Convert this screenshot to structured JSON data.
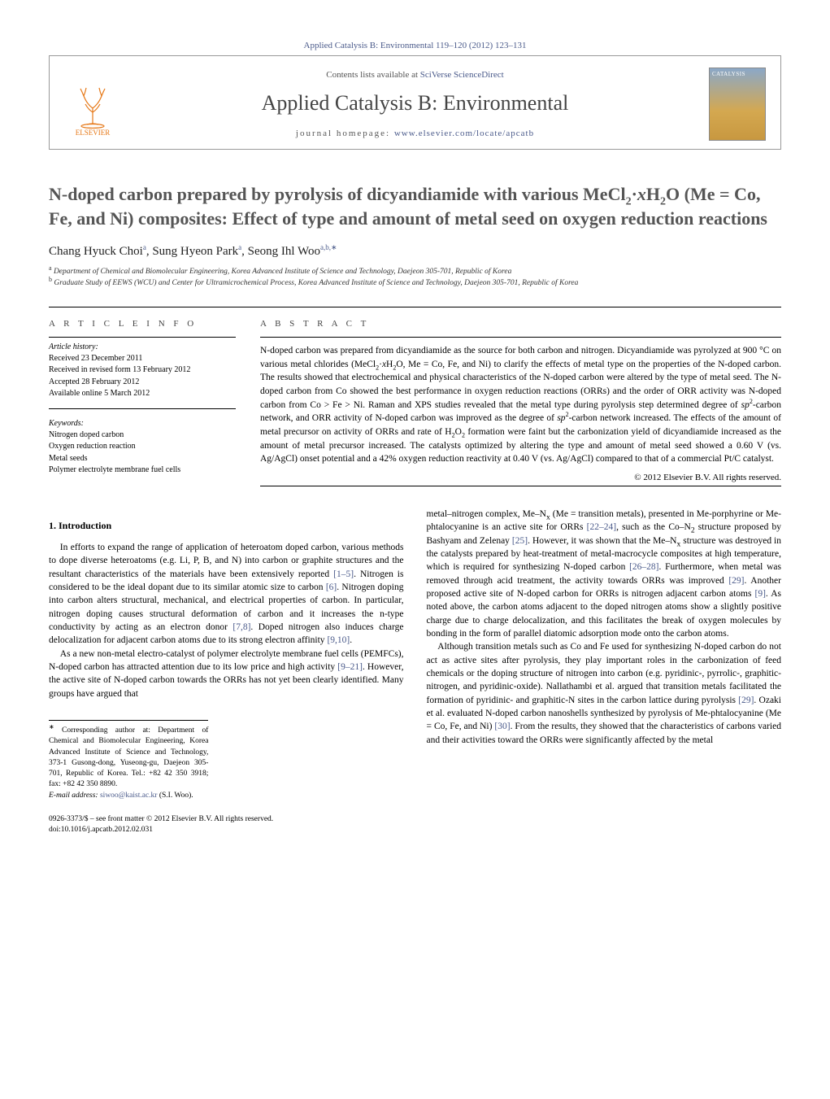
{
  "colors": {
    "link": "#4a5a8a",
    "logo": "#e67817",
    "title_gray": "#555555",
    "text": "#000000",
    "background": "#ffffff",
    "rule": "#000000"
  },
  "typography": {
    "base_font": "Georgia, 'Times New Roman', serif",
    "body_size_pt": 11.5,
    "title_size_pt": 22,
    "journal_title_size_pt": 26,
    "small_size_pt": 10
  },
  "journal_ref": "Applied Catalysis B: Environmental 119–120 (2012) 123–131",
  "header": {
    "publisher": "ELSEVIER",
    "contents_prefix": "Contents lists available at ",
    "contents_link": "SciVerse ScienceDirect",
    "journal_title": "Applied Catalysis B: Environmental",
    "homepage_prefix": "journal homepage: ",
    "homepage_url": "www.elsevier.com/locate/apcatb",
    "cover_label": "CATALYSIS"
  },
  "article": {
    "title_html": "N-doped carbon prepared by pyrolysis of dicyandiamide with various MeCl<sub>2</sub>·<i>x</i>H<sub>2</sub>O (Me = Co, Fe, and Ni) composites: Effect of type and amount of metal seed on oxygen reduction reactions",
    "authors_html": "Chang Hyuck Choi<sup>a</sup>, Sung Hyeon Park<sup>a</sup>, Seong Ihl Woo<sup>a,b,∗</sup>",
    "affiliations": [
      {
        "marker": "a",
        "text": "Department of Chemical and Biomolecular Engineering, Korea Advanced Institute of Science and Technology, Daejeon 305-701, Republic of Korea"
      },
      {
        "marker": "b",
        "text": "Graduate Study of EEWS (WCU) and Center for Ultramicrochemical Process, Korea Advanced Institute of Science and Technology, Daejeon 305-701, Republic of Korea"
      }
    ]
  },
  "info": {
    "section_label": "A R T I C L E   I N F O",
    "history_label": "Article history:",
    "history": [
      "Received 23 December 2011",
      "Received in revised form 13 February 2012",
      "Accepted 28 February 2012",
      "Available online 5 March 2012"
    ],
    "keywords_label": "Keywords:",
    "keywords": [
      "Nitrogen doped carbon",
      "Oxygen reduction reaction",
      "Metal seeds",
      "Polymer electrolyte membrane fuel cells"
    ]
  },
  "abstract": {
    "label": "A B S T R A C T",
    "text_html": "N-doped carbon was prepared from dicyandiamide as the source for both carbon and nitrogen. Dicyandiamide was pyrolyzed at 900 °C on various metal chlorides (MeCl<sub>2</sub>·<i>x</i>H<sub>2</sub>O, Me = Co, Fe, and Ni) to clarify the effects of metal type on the properties of the N-doped carbon. The results showed that electrochemical and physical characteristics of the N-doped carbon were altered by the type of metal seed. The N-doped carbon from Co showed the best performance in oxygen reduction reactions (ORRs) and the order of ORR activity was N-doped carbon from Co > Fe > Ni. Raman and XPS studies revealed that the metal type during pyrolysis step determined degree of <i>sp</i><sup>2</sup>-carbon network, and ORR activity of N-doped carbon was improved as the degree of <i>sp</i><sup>2</sup>-carbon network increased. The effects of the amount of metal precursor on activity of ORRs and rate of H<sub>2</sub>O<sub>2</sub> formation were faint but the carbonization yield of dicyandiamide increased as the amount of metal precursor increased. The catalysts optimized by altering the type and amount of metal seed showed a 0.60 V (vs. Ag/AgCl) onset potential and a 42% oxygen reduction reactivity at 0.40 V (vs. Ag/AgCl) compared to that of a commercial Pt/C catalyst.",
    "copyright": "© 2012 Elsevier B.V. All rights reserved."
  },
  "body": {
    "heading1": "1. Introduction",
    "col1_p1_html": "In efforts to expand the range of application of heteroatom doped carbon, various methods to dope diverse heteroatoms (e.g. Li, P, B, and N) into carbon or graphite structures and the resultant characteristics of the materials have been extensively reported <span class=\"ref-link\">[1–5]</span>. Nitrogen is considered to be the ideal dopant due to its similar atomic size to carbon <span class=\"ref-link\">[6]</span>. Nitrogen doping into carbon alters structural, mechanical, and electrical properties of carbon. In particular, nitrogen doping causes structural deformation of carbon and it increases the n-type conductivity by acting as an electron donor <span class=\"ref-link\">[7,8]</span>. Doped nitrogen also induces charge delocalization for adjacent carbon atoms due to its strong electron affinity <span class=\"ref-link\">[9,10]</span>.",
    "col1_p2_html": "As a new non-metal electro-catalyst of polymer electrolyte membrane fuel cells (PEMFCs), N-doped carbon has attracted attention due to its low price and high activity <span class=\"ref-link\">[9–21]</span>. However, the active site of N-doped carbon towards the ORRs has not yet been clearly identified. Many groups have argued that",
    "col2_p1_html": "metal–nitrogen complex, Me–N<sub>x</sub> (Me = transition metals), presented in Me-porphyrine or Me-phtalocyanine is an active site for ORRs <span class=\"ref-link\">[22–24]</span>, such as the Co–N<sub>2</sub> structure proposed by Bashyam and Zelenay <span class=\"ref-link\">[25]</span>. However, it was shown that the Me–N<sub>x</sub> structure was destroyed in the catalysts prepared by heat-treatment of metal-macrocycle composites at high temperature, which is required for synthesizing N-doped carbon <span class=\"ref-link\">[26–28]</span>. Furthermore, when metal was removed through acid treatment, the activity towards ORRs was improved <span class=\"ref-link\">[29]</span>. Another proposed active site of N-doped carbon for ORRs is nitrogen adjacent carbon atoms <span class=\"ref-link\">[9]</span>. As noted above, the carbon atoms adjacent to the doped nitrogen atoms show a slightly positive charge due to charge delocalization, and this facilitates the break of oxygen molecules by bonding in the form of parallel diatomic adsorption mode onto the carbon atoms.",
    "col2_p2_html": "Although transition metals such as Co and Fe used for synthesizing N-doped carbon do not act as active sites after pyrolysis, they play important roles in the carbonization of feed chemicals or the doping structure of nitrogen into carbon (e.g. pyridinic-, pyrrolic-, graphitic-nitrogen, and pyridinic-oxide). Nallathambi et al. argued that transition metals facilitated the formation of pyridinic- and graphitic-N sites in the carbon lattice during pyrolysis <span class=\"ref-link\">[29]</span>. Ozaki et al. evaluated N-doped carbon nanoshells synthesized by pyrolysis of Me-phtalocyanine (Me = Co, Fe, and Ni) <span class=\"ref-link\">[30]</span>. From the results, they showed that the characteristics of carbons varied and their activities toward the ORRs were significantly affected by the metal"
  },
  "corresponding": {
    "star": "∗",
    "text": "Corresponding author at: Department of Chemical and Biomolecular Engineering, Korea Advanced Institute of Science and Technology, 373-1 Gusong-dong, Yuseong-gu, Daejeon 305-701, Republic of Korea. Tel.: +82 42 350 3918; fax: +82 42 350 8890.",
    "email_label": "E-mail address:",
    "email": "siwoo@kaist.ac.kr",
    "email_person": "(S.I. Woo)."
  },
  "footer": {
    "line1": "0926-3373/$ – see front matter © 2012 Elsevier B.V. All rights reserved.",
    "line2": "doi:10.1016/j.apcatb.2012.02.031"
  }
}
